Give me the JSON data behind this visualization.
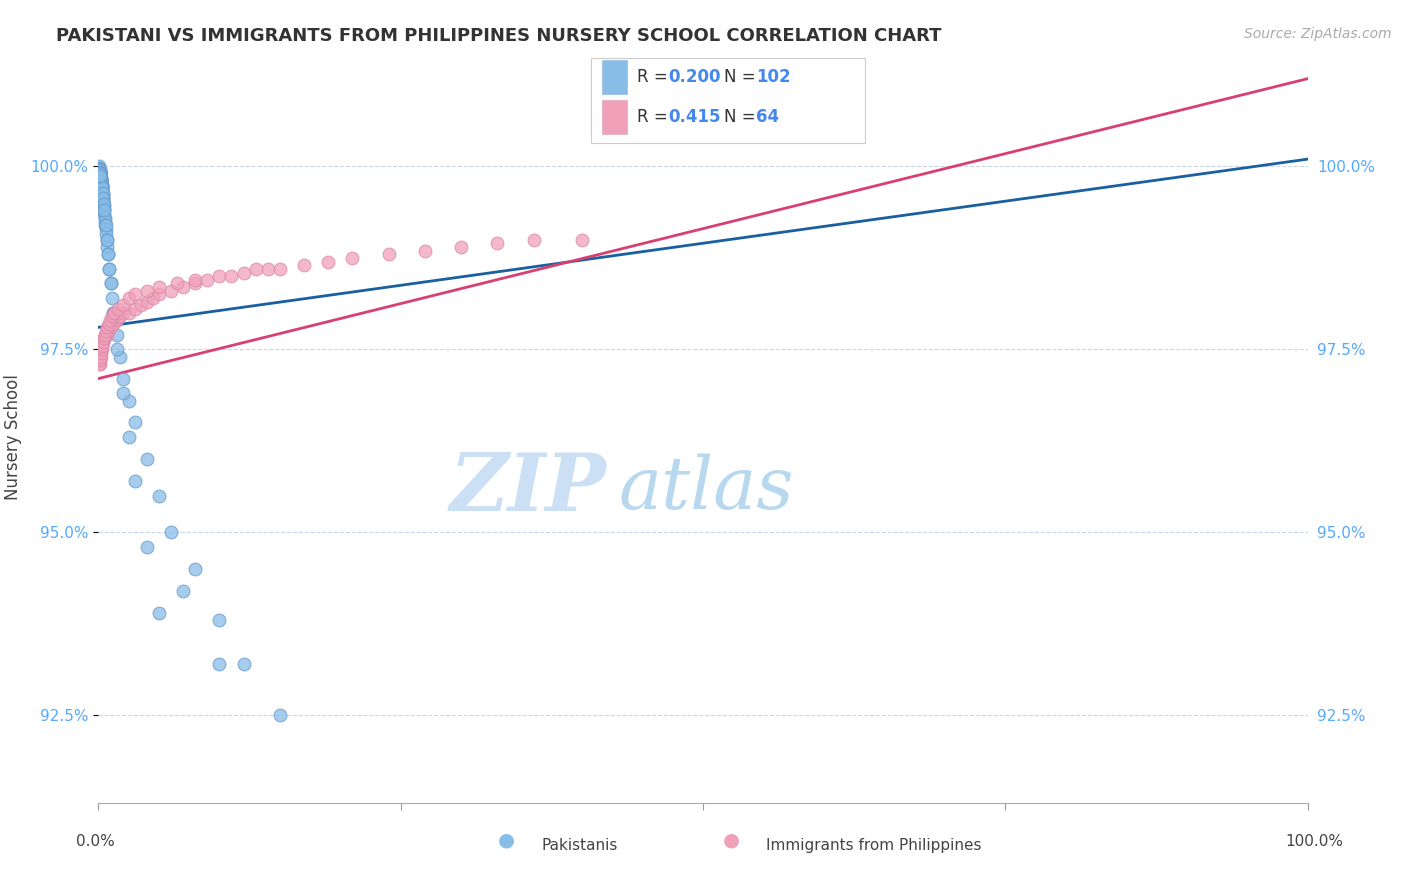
{
  "title": "PAKISTANI VS IMMIGRANTS FROM PHILIPPINES NURSERY SCHOOL CORRELATION CHART",
  "source": "Source: ZipAtlas.com",
  "ylabel": "Nursery School",
  "yticks": [
    92.5,
    95.0,
    97.5,
    100.0
  ],
  "ytick_labels": [
    "92.5%",
    "95.0%",
    "97.5%",
    "100.0%"
  ],
  "xlim": [
    0,
    100
  ],
  "ylim": [
    91.3,
    101.3
  ],
  "color_blue": "#88bde8",
  "color_pink": "#f0a0b8",
  "color_trend_blue": "#1a5fa0",
  "color_trend_pink": "#d84070",
  "color_tick": "#55aaff",
  "watermark_zip_color": "#cce0f5",
  "watermark_atlas_color": "#b8d8f0",
  "legend_r1": "0.200",
  "legend_n1": "102",
  "legend_r2": "0.415",
  "legend_n2": "64",
  "pakistanis_x": [
    0.05,
    0.07,
    0.08,
    0.09,
    0.1,
    0.1,
    0.12,
    0.12,
    0.13,
    0.14,
    0.15,
    0.15,
    0.16,
    0.17,
    0.18,
    0.18,
    0.19,
    0.2,
    0.2,
    0.22,
    0.23,
    0.24,
    0.25,
    0.25,
    0.26,
    0.27,
    0.28,
    0.29,
    0.3,
    0.3,
    0.32,
    0.33,
    0.35,
    0.36,
    0.38,
    0.4,
    0.4,
    0.42,
    0.45,
    0.47,
    0.5,
    0.52,
    0.55,
    0.58,
    0.6,
    0.65,
    0.7,
    0.75,
    0.8,
    0.9,
    1.0,
    1.1,
    1.2,
    1.5,
    1.8,
    2.0,
    2.5,
    3.0,
    4.0,
    5.0,
    6.0,
    8.0,
    10.0,
    12.0,
    15.0,
    0.06,
    0.08,
    0.1,
    0.12,
    0.14,
    0.16,
    0.18,
    0.2,
    0.22,
    0.25,
    0.28,
    0.3,
    0.35,
    0.4,
    0.45,
    0.5,
    0.6,
    0.7,
    0.8,
    0.9,
    1.0,
    1.2,
    1.5,
    2.0,
    2.5,
    3.0,
    4.0,
    5.0,
    7.0,
    10.0,
    0.05,
    0.07,
    0.09,
    0.11,
    0.13,
    0.15,
    0.17
  ],
  "pakistanis_y": [
    100.0,
    99.98,
    99.96,
    99.95,
    99.94,
    99.93,
    99.92,
    99.91,
    99.9,
    99.89,
    99.88,
    99.87,
    99.86,
    99.85,
    99.84,
    99.83,
    99.82,
    99.81,
    99.8,
    99.79,
    99.78,
    99.77,
    99.76,
    99.75,
    99.74,
    99.73,
    99.72,
    99.71,
    99.7,
    99.69,
    99.67,
    99.65,
    99.63,
    99.6,
    99.57,
    99.54,
    99.51,
    99.48,
    99.44,
    99.4,
    99.35,
    99.3,
    99.25,
    99.2,
    99.15,
    99.08,
    99.0,
    98.9,
    98.8,
    98.6,
    98.4,
    98.2,
    98.0,
    97.7,
    97.4,
    97.1,
    96.8,
    96.5,
    96.0,
    95.5,
    95.0,
    94.5,
    93.8,
    93.2,
    92.5,
    99.95,
    99.93,
    99.91,
    99.89,
    99.87,
    99.85,
    99.83,
    99.81,
    99.79,
    99.76,
    99.73,
    99.7,
    99.64,
    99.57,
    99.49,
    99.4,
    99.2,
    99.0,
    98.8,
    98.6,
    98.4,
    98.0,
    97.5,
    96.9,
    96.3,
    95.7,
    94.8,
    93.9,
    94.2,
    93.2,
    99.97,
    99.96,
    99.95,
    99.93,
    99.91,
    99.89,
    99.87
  ],
  "philippines_x": [
    0.1,
    0.15,
    0.2,
    0.25,
    0.3,
    0.35,
    0.4,
    0.5,
    0.6,
    0.7,
    0.8,
    1.0,
    1.2,
    1.5,
    1.8,
    2.0,
    2.5,
    3.0,
    3.5,
    4.0,
    4.5,
    5.0,
    6.0,
    7.0,
    8.0,
    9.0,
    10.0,
    11.0,
    12.0,
    13.0,
    14.0,
    15.0,
    17.0,
    19.0,
    21.0,
    24.0,
    27.0,
    30.0,
    33.0,
    36.0,
    40.0,
    0.08,
    0.12,
    0.18,
    0.22,
    0.28,
    0.32,
    0.38,
    0.45,
    0.55,
    0.65,
    0.75,
    0.85,
    0.95,
    1.1,
    1.3,
    1.6,
    2.0,
    2.5,
    3.0,
    4.0,
    5.0,
    6.5,
    8.0
  ],
  "philippines_y": [
    97.3,
    97.4,
    97.5,
    97.5,
    97.55,
    97.6,
    97.6,
    97.65,
    97.7,
    97.7,
    97.75,
    97.8,
    97.85,
    97.9,
    97.95,
    98.0,
    98.0,
    98.05,
    98.1,
    98.15,
    98.2,
    98.25,
    98.3,
    98.35,
    98.4,
    98.45,
    98.5,
    98.5,
    98.55,
    98.6,
    98.6,
    98.6,
    98.65,
    98.7,
    98.75,
    98.8,
    98.85,
    98.9,
    98.95,
    99.0,
    99.0,
    97.3,
    97.35,
    97.4,
    97.45,
    97.5,
    97.55,
    97.6,
    97.65,
    97.7,
    97.75,
    97.8,
    97.85,
    97.9,
    97.95,
    98.0,
    98.05,
    98.1,
    98.2,
    98.25,
    98.3,
    98.35,
    98.4,
    98.45
  ],
  "trend_blue_x0": 0,
  "trend_blue_y0": 97.8,
  "trend_blue_x1": 100,
  "trend_blue_y1": 100.1,
  "trend_pink_x0": 0,
  "trend_pink_y0": 97.1,
  "trend_pink_x1": 100,
  "trend_pink_y1": 101.2
}
